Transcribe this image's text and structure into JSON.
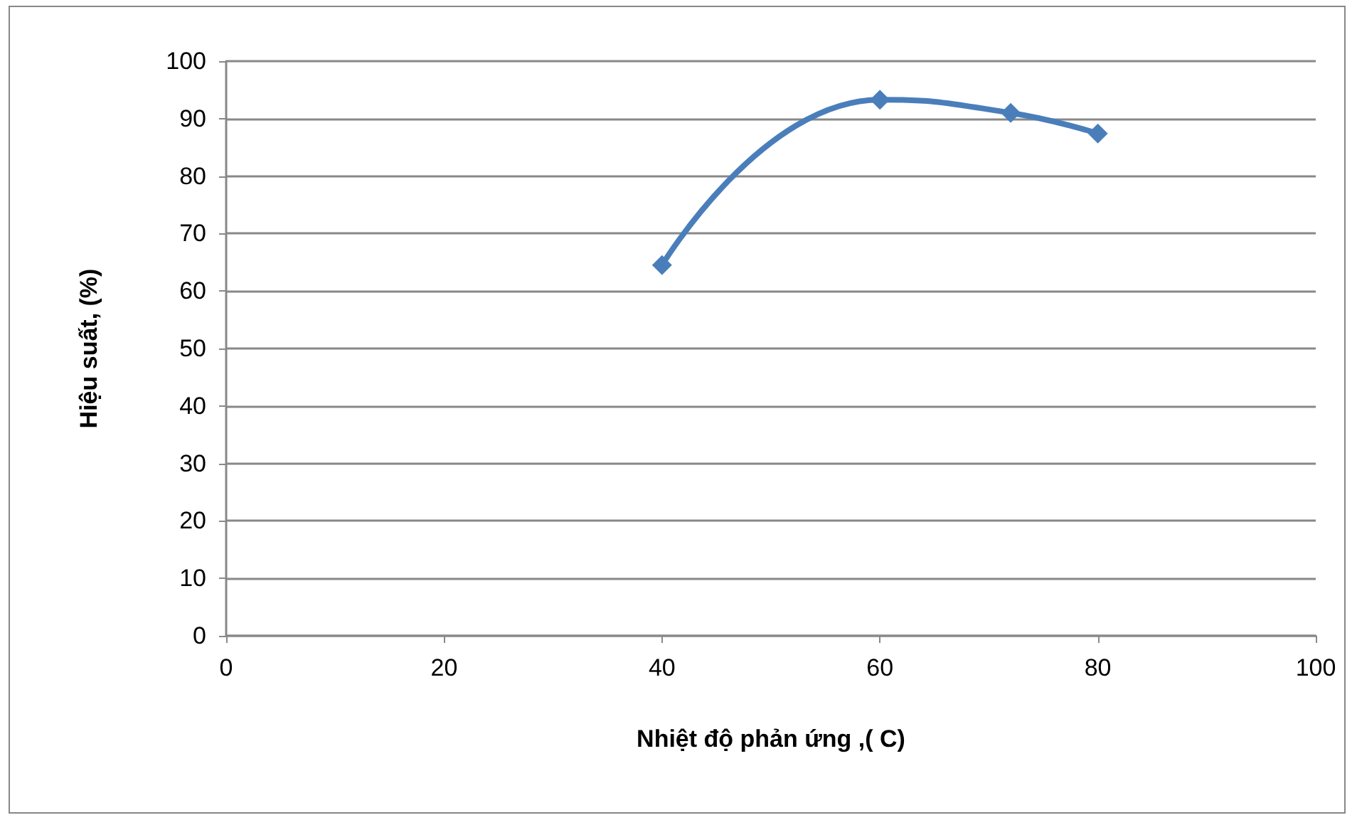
{
  "chart_data": {
    "type": "line",
    "xlabel": "Nhiệt độ phản ứng ,( C)",
    "ylabel": "Hiệu suất, (%)",
    "x": [
      40,
      60,
      72,
      80
    ],
    "series": [
      {
        "color": "#4a7ebb",
        "values": [
          64.5,
          93.3,
          91,
          87.4
        ]
      }
    ],
    "xlim": [
      0,
      100
    ],
    "xticks": [
      0,
      20,
      40,
      60,
      80,
      100
    ],
    "ylim": [
      0,
      100
    ],
    "yticks": [
      0,
      10,
      20,
      30,
      40,
      50,
      60,
      70,
      80,
      90,
      100
    ],
    "grid": "y",
    "marker": "diamond",
    "line_style": "solid"
  }
}
